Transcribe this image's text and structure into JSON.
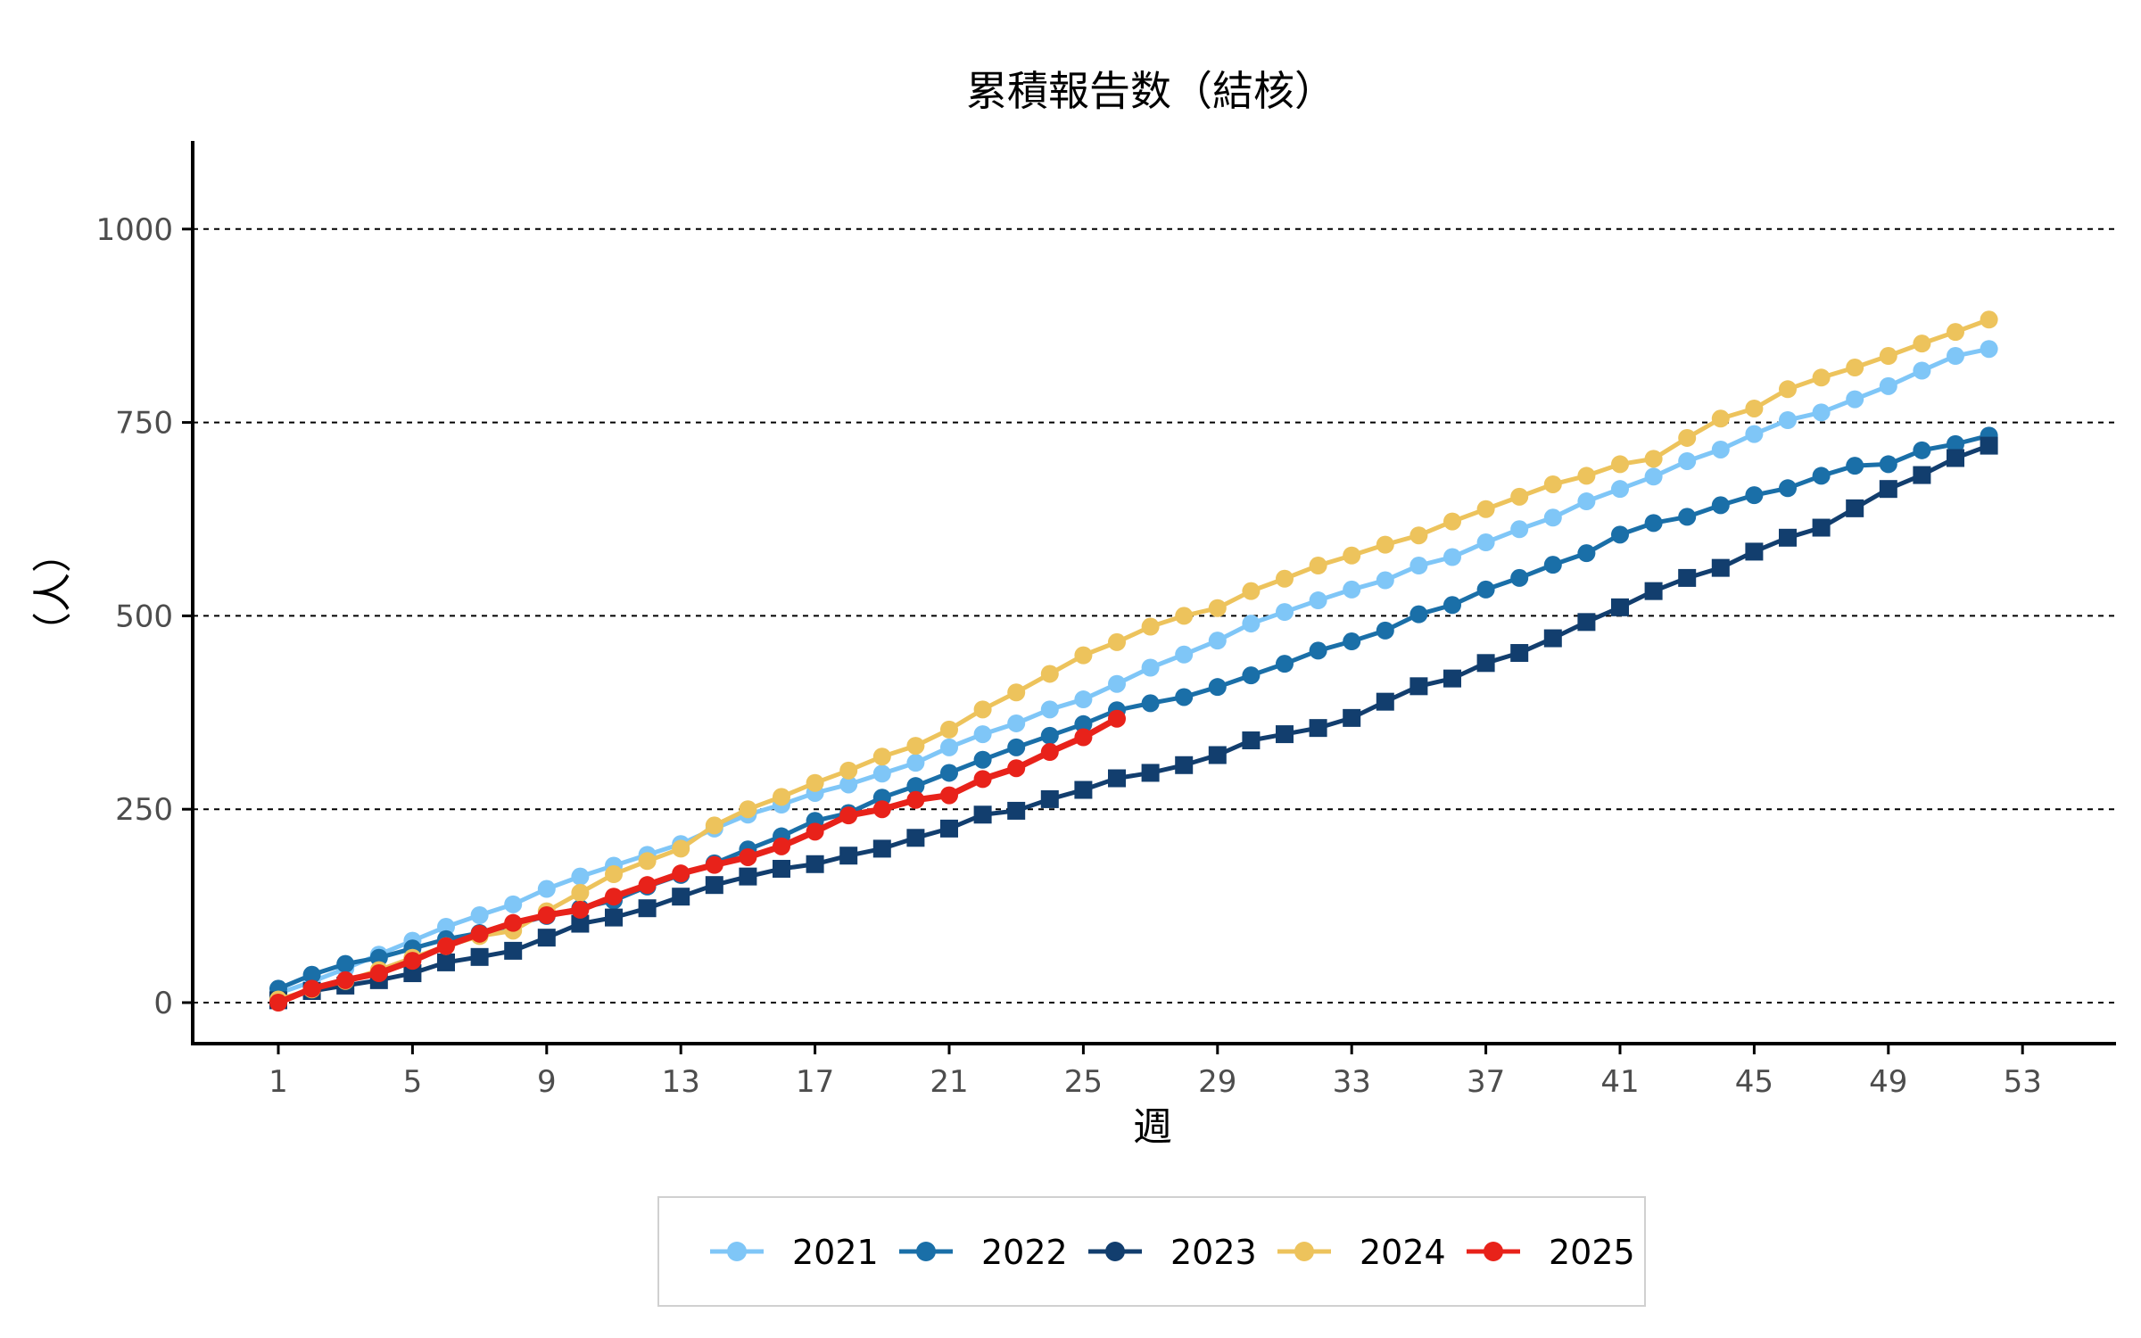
{
  "chart_data": {
    "type": "line",
    "title": "累積報告数（結核）",
    "xlabel": "週",
    "ylabel": "（人）",
    "xlim": [
      0,
      55
    ],
    "ylim": [
      -50,
      1110
    ],
    "x_ticks": [
      1,
      5,
      9,
      13,
      17,
      21,
      25,
      29,
      33,
      37,
      41,
      45,
      49,
      53
    ],
    "y_ticks": [
      0,
      250,
      500,
      750,
      1000
    ],
    "grid": "horizontal dashed",
    "legend_position": "bottom",
    "series": [
      {
        "name": "2021",
        "color": "#7fc6f7",
        "marker": "circle",
        "x": [
          1,
          2,
          3,
          4,
          5,
          6,
          7,
          8,
          9,
          10,
          11,
          12,
          13,
          14,
          15,
          16,
          17,
          18,
          19,
          20,
          21,
          22,
          23,
          24,
          25,
          26,
          27,
          28,
          29,
          30,
          31,
          32,
          33,
          34,
          35,
          36,
          37,
          38,
          39,
          40,
          41,
          42,
          43,
          44,
          45,
          46,
          47,
          48,
          49,
          50,
          51,
          52
        ],
        "values": [
          12,
          27,
          44,
          62,
          80,
          98,
          113,
          127,
          147,
          163,
          177,
          191,
          205,
          225,
          243,
          256,
          271,
          282,
          296,
          310,
          330,
          347,
          361,
          379,
          392,
          412,
          433,
          450,
          468,
          490,
          505,
          520,
          534,
          546,
          565,
          576,
          595,
          612,
          627,
          648,
          664,
          680,
          700,
          715,
          735,
          753,
          763,
          780,
          797,
          817,
          836,
          845
        ]
      },
      {
        "name": "2022",
        "color": "#1a6fa8",
        "marker": "circle",
        "x": [
          1,
          2,
          3,
          4,
          5,
          6,
          7,
          8,
          9,
          10,
          11,
          12,
          13,
          14,
          15,
          16,
          17,
          18,
          19,
          20,
          21,
          22,
          23,
          24,
          25,
          26,
          27,
          28,
          29,
          30,
          31,
          32,
          33,
          34,
          35,
          36,
          37,
          38,
          39,
          40,
          41,
          42,
          43,
          44,
          45,
          46,
          47,
          48,
          49,
          50,
          51,
          52
        ],
        "values": [
          18,
          36,
          50,
          58,
          70,
          82,
          90,
          100,
          112,
          122,
          132,
          150,
          165,
          180,
          198,
          215,
          235,
          245,
          265,
          280,
          297,
          314,
          330,
          345,
          360,
          378,
          387,
          395,
          408,
          423,
          438,
          455,
          467,
          481,
          502,
          514,
          534,
          549,
          566,
          581,
          605,
          620,
          628,
          643,
          656,
          665,
          681,
          694,
          696,
          714,
          722,
          733
        ]
      },
      {
        "name": "2023",
        "color": "#123e6e",
        "marker": "square",
        "x": [
          1,
          2,
          3,
          4,
          5,
          6,
          7,
          8,
          9,
          10,
          11,
          12,
          13,
          14,
          15,
          16,
          17,
          18,
          19,
          20,
          21,
          22,
          23,
          24,
          25,
          26,
          27,
          28,
          29,
          30,
          31,
          32,
          33,
          34,
          35,
          36,
          37,
          38,
          39,
          40,
          41,
          42,
          43,
          44,
          45,
          46,
          47,
          48,
          49,
          50,
          51,
          52
        ],
        "values": [
          3,
          15,
          22,
          29,
          38,
          52,
          59,
          67,
          84,
          102,
          110,
          122,
          137,
          152,
          163,
          173,
          179,
          190,
          199,
          213,
          225,
          243,
          248,
          263,
          275,
          290,
          297,
          307,
          320,
          339,
          347,
          355,
          368,
          389,
          409,
          419,
          439,
          452,
          471,
          492,
          511,
          532,
          549,
          562,
          583,
          601,
          614,
          639,
          664,
          682,
          704,
          720
        ]
      },
      {
        "name": "2024",
        "color": "#edc35c",
        "marker": "circle",
        "x": [
          1,
          2,
          3,
          4,
          5,
          6,
          7,
          8,
          9,
          10,
          11,
          12,
          13,
          14,
          15,
          16,
          17,
          18,
          19,
          20,
          21,
          22,
          23,
          24,
          25,
          26,
          27,
          28,
          29,
          30,
          31,
          32,
          33,
          34,
          35,
          36,
          37,
          38,
          39,
          40,
          41,
          42,
          43,
          44,
          45,
          46,
          47,
          48,
          49,
          50,
          51,
          52
        ],
        "values": [
          4,
          17,
          28,
          42,
          58,
          73,
          86,
          93,
          118,
          142,
          166,
          183,
          199,
          229,
          250,
          266,
          284,
          300,
          318,
          332,
          353,
          379,
          401,
          425,
          449,
          466,
          486,
          500,
          510,
          532,
          548,
          565,
          578,
          592,
          604,
          622,
          638,
          654,
          670,
          681,
          696,
          703,
          730,
          755,
          768,
          793,
          808,
          821,
          836,
          852,
          867,
          883
        ]
      },
      {
        "name": "2025",
        "color": "#e8221a",
        "marker": "circle",
        "x": [
          1,
          2,
          3,
          4,
          5,
          6,
          7,
          8,
          9,
          10,
          11,
          12,
          13,
          14,
          15,
          16,
          17,
          18,
          19,
          20,
          21,
          22,
          23,
          24,
          25,
          26
        ],
        "values": [
          0,
          18,
          29,
          38,
          54,
          73,
          89,
          103,
          113,
          120,
          137,
          152,
          167,
          178,
          188,
          202,
          221,
          242,
          250,
          262,
          268,
          289,
          303,
          324,
          343,
          367
        ]
      }
    ]
  }
}
